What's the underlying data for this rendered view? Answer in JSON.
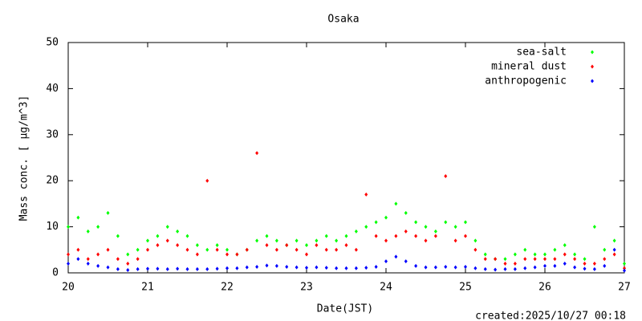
{
  "chart_data": {
    "type": "scatter",
    "title": "Osaka",
    "xlabel": "Date(JST)",
    "ylabel": "Mass conc. [ μg/m^3]",
    "annotation": "created:2025/10/27 00:18",
    "x": [
      20,
      20.125,
      20.25,
      20.375,
      20.5,
      20.625,
      20.75,
      20.875,
      21,
      21.125,
      21.25,
      21.375,
      21.5,
      21.625,
      21.75,
      21.875,
      22,
      22.125,
      22.25,
      22.375,
      22.5,
      22.625,
      22.75,
      22.875,
      23,
      23.125,
      23.25,
      23.375,
      23.5,
      23.625,
      23.75,
      23.875,
      24,
      24.125,
      24.25,
      24.375,
      24.5,
      24.625,
      24.75,
      24.875,
      25,
      25.125,
      25.25,
      25.375,
      25.5,
      25.625,
      25.75,
      25.875,
      26,
      26.125,
      26.25,
      26.375,
      26.5,
      26.625,
      26.75,
      26.875,
      27
    ],
    "series": [
      {
        "name": "sea-salt",
        "color": "#00ff00",
        "values": [
          10,
          12,
          9,
          10,
          13,
          8,
          4,
          5,
          7,
          8,
          10,
          9,
          8,
          6,
          5,
          6,
          5,
          4,
          5,
          7,
          8,
          7,
          6,
          7,
          6,
          7,
          8,
          7,
          8,
          9,
          10,
          11,
          12,
          15,
          13,
          11,
          10,
          9,
          11,
          10,
          11,
          7,
          4,
          3,
          3,
          4,
          5,
          4,
          4,
          5,
          6,
          4,
          3,
          10,
          5,
          7,
          2
        ]
      },
      {
        "name": "mineral dust",
        "color": "#ff0000",
        "values": [
          4,
          5,
          3,
          4,
          5,
          3,
          2,
          3,
          5,
          6,
          7,
          6,
          5,
          4,
          20,
          5,
          4,
          4,
          5,
          26,
          6,
          5,
          6,
          5,
          4,
          6,
          5,
          5,
          6,
          5,
          17,
          8,
          7,
          8,
          9,
          8,
          7,
          8,
          21,
          7,
          8,
          5,
          3,
          3,
          2,
          2,
          3,
          3,
          3,
          3,
          4,
          3,
          2,
          2,
          3,
          4,
          1
        ]
      },
      {
        "name": "anthropogenic",
        "color": "#0000ff",
        "values": [
          2,
          3,
          2,
          1.5,
          1.2,
          0.8,
          0.6,
          0.8,
          0.9,
          0.9,
          0.8,
          0.9,
          0.8,
          0.8,
          0.8,
          0.9,
          1,
          1,
          1.2,
          1.3,
          1.6,
          1.5,
          1.3,
          1.2,
          1.1,
          1.2,
          1.1,
          1,
          1,
          1,
          1.1,
          1.3,
          2.5,
          3.5,
          2.5,
          1.5,
          1.2,
          1.2,
          1.3,
          1.2,
          1.3,
          1,
          0.8,
          0.7,
          0.8,
          0.8,
          1,
          1.2,
          1.5,
          1.5,
          2,
          1.2,
          0.9,
          0.8,
          1.5,
          5,
          0.5
        ]
      }
    ],
    "xlim": [
      20,
      27
    ],
    "xticks": [
      20,
      21,
      22,
      23,
      24,
      25,
      26,
      27
    ],
    "ylim": [
      0,
      50
    ],
    "yticks": [
      0,
      10,
      20,
      30,
      40,
      50
    ],
    "legend": "top-right"
  }
}
